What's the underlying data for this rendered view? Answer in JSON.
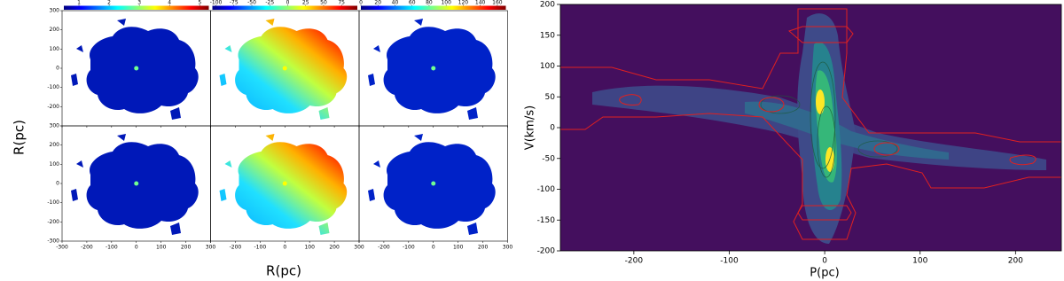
{
  "chart_data": [
    {
      "type": "map",
      "xlabel": "R(pc)",
      "ylabel": "R(pc)",
      "xlim": [
        -300,
        300
      ],
      "xticks": [
        -300,
        -200,
        -100,
        0,
        100,
        200,
        300
      ],
      "ylim": [
        -300,
        300
      ],
      "yticks": [
        -300,
        -200,
        -100,
        0,
        100,
        200,
        300
      ],
      "colorbars": [
        {
          "lim": [
            0.5,
            5.3
          ],
          "ticks": [
            1,
            2,
            3,
            4,
            5
          ]
        },
        {
          "lim": [
            -105,
            97
          ],
          "ticks": [
            -100,
            -75,
            -50,
            -25,
            0,
            25,
            50,
            75
          ]
        },
        {
          "lim": [
            0,
            170
          ],
          "ticks": [
            0,
            20,
            40,
            60,
            80,
            100,
            120,
            140,
            160
          ]
        }
      ]
    },
    {
      "type": "pv",
      "xlabel": "P(pc)",
      "ylabel": "V(km/s)",
      "xlim": [
        -277,
        248
      ],
      "xticks": [
        -200,
        -100,
        0,
        100,
        200
      ],
      "ylim": [
        -200,
        200
      ],
      "yticks": [
        -200,
        -150,
        -100,
        -50,
        0,
        50,
        100,
        150,
        200
      ]
    }
  ]
}
